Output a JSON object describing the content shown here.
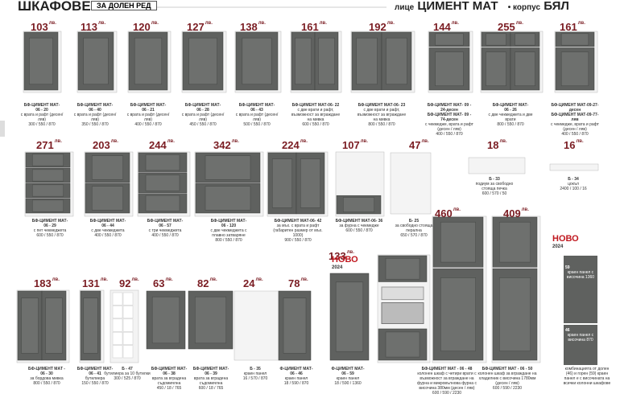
{
  "header": {
    "title": "ШКАФОВЕ",
    "tab": "ЗА ДОЛЕН РЕД",
    "front_label": "лице",
    "front": "ЦИМЕНТ МАТ",
    "body_label": "корпус",
    "body": "БЯЛ"
  },
  "currency": "лв.",
  "products": [
    {
      "price": 103,
      "code": [
        "БФ-ЦИМЕНТ МАТ-",
        "06 - 20"
      ],
      "desc": "с врата и рафт (десен/ ляв)",
      "dims": "300 / 550 / 870"
    },
    {
      "price": 113,
      "code": [
        "БФ-ЦИМЕНТ МАТ-",
        "06 - 40"
      ],
      "desc": "с врата и рафт (десен/ ляв)",
      "dims": "350 / 550 / 870"
    },
    {
      "price": 120,
      "code": [
        "БФ-ЦИМЕНТ МАТ-",
        "06 - 21"
      ],
      "desc": "с врата и рафт (десен/ ляв)",
      "dims": "400 / 550 / 870"
    },
    {
      "price": 127,
      "code": [
        "БФ-ЦИМЕНТ МАТ-",
        "06 - 28"
      ],
      "desc": "с врата и рафт (десен/ ляв)",
      "dims": "450 / 550 / 870"
    },
    {
      "price": 138,
      "code": [
        "БФ-ЦИМЕНТ МАТ-",
        "06 - 43"
      ],
      "desc": "с врата и рафт (десен/ ляв)",
      "dims": "500 / 550 / 870"
    },
    {
      "price": 161,
      "code": [
        "БФ-ЦИМЕНТ МАТ-06- 22"
      ],
      "desc": "с две врати и рафт, възможност за вграждане на мивка",
      "dims": "600 / 550 / 870"
    },
    {
      "price": 192,
      "code": [
        "БФ-ЦИМЕНТ МАТ-06- 23"
      ],
      "desc": "с две врати и рафт, възможност за вграждане на мивка",
      "dims": "800 / 550 / 870"
    },
    {
      "price": 144,
      "code": [
        "БФ-ЦИМЕНТ МАТ- 09 - 24-десен",
        "БФ-ЦИМЕНТ МАТ- 09 - 74-десен"
      ],
      "desc": "с чекмедже, врата и рафт (десен / ляв)",
      "dims": "400 / 550 / 870"
    },
    {
      "price": 255,
      "code": [
        "БФ-ЦИМЕНТ МАТ-",
        "06 - 26"
      ],
      "desc": "с две чекмеджета и две врати",
      "dims": "800 / 550 / 870"
    },
    {
      "price": 161,
      "code": [
        "БФ-ЦИМЕНТ МАТ-09-27-десен",
        "БФ-ЦИМЕНТ МАТ-09-77-ляв"
      ],
      "desc": "с чекмедже, врата и рафт (десен / ляв)",
      "dims": "400 / 550 / 870"
    },
    {
      "price": 271,
      "code": [
        "БФ-ЦИМЕНТ МАТ-",
        "06 - 29"
      ],
      "desc": "с пет чекмеджета",
      "dims": "600 / 550 / 870"
    },
    {
      "price": 203,
      "code": [
        "БФ-ЦИМЕНТ МАТ-",
        "06 - 44"
      ],
      "desc": "с две чекмеджета",
      "dims": "400 / 550 / 870"
    },
    {
      "price": 244,
      "code": [
        "БФ-ЦИМЕНТ МАТ-",
        "06 - 57"
      ],
      "desc": "с три чекмеджета",
      "dims": "400 / 550 / 870"
    },
    {
      "price": 342,
      "code": [
        "БФ-ЦИМЕНТ МАТ-",
        "06 - 120"
      ],
      "desc": "с две чекмеджета с плавно затваряне",
      "dims": "800 / 550 / 870"
    },
    {
      "price": 224,
      "code": [
        "БФ-ЦИМЕНТ МАТ-06- 42"
      ],
      "desc": "за мъх. с врата и рафт (габаритен размер от мъх. 1000)",
      "dims": "900 / 550 / 870"
    },
    {
      "price": 107,
      "code": [
        "БФ-ЦИМЕНТ МАТ-06- 36"
      ],
      "desc": "за фурна с чекмедже",
      "dims": "600 / 550 / 870"
    },
    {
      "price": 47,
      "code": [
        "Б- 25"
      ],
      "desc": "за свободно стояща перална",
      "dims": "650 / 570 / 870"
    },
    {
      "price": 18,
      "code": [
        "Б - 33"
      ],
      "desc": "подиум за свободно стояща печка",
      "dims": "600 / 570 / 50"
    },
    {
      "price": 16,
      "code": [
        "Б - 34"
      ],
      "desc": "цокъл",
      "dims": "2400 / 100 / 16"
    },
    {
      "price": 183,
      "code": [
        "БФ-ЦИМЕНТ МАТ -",
        "06 - 30"
      ],
      "desc": "за бордова мивка",
      "dims": "800 / 550 / 870"
    },
    {
      "price": 131,
      "code": [
        "БФ-ЦИМЕНТ МАТ-",
        "06 - 41"
      ],
      "desc": "бутилиера",
      "dims": "150 / 550 / 870"
    },
    {
      "price": 92,
      "code": [
        "Б - 47"
      ],
      "desc": "бутилиера за 10 бутилки",
      "dims": "300 / 525 / 870"
    },
    {
      "price": 63,
      "code": [
        "БФ-ЦИМЕНТ МАТ-",
        "06 - 38"
      ],
      "desc": "врата за вградена съдомиялна",
      "dims": "450 / 18 / 765"
    },
    {
      "price": 82,
      "code": [
        "БФ-ЦИМЕНТ МАТ-",
        "06 - 39"
      ],
      "desc": "врата за вградена съдомиялна",
      "dims": "600 / 18 / 765"
    },
    {
      "price": 24,
      "code": [
        "Б - 35"
      ],
      "desc": "краен панел",
      "dims": "16 / 570 / 870"
    },
    {
      "price": 78,
      "code": [
        "Ф-ЦИМЕНТ МАТ-",
        "06 - 46"
      ],
      "desc": "краен панел",
      "dims": "18 / 590 / 870"
    },
    {
      "price": 133,
      "code": [
        "Ф-ЦИМЕНТ МАТ-",
        "06 - 59"
      ],
      "desc": "краен панел",
      "dims": "18 / 590 / 1360"
    },
    {
      "price": 460,
      "code": [
        "БФ-ЦИМЕНТ МАТ - 06 - 48"
      ],
      "desc": "колонен шкаф с четири врати с възможност за вграждане на фурна и микровълнова фурна с височина 380мм (десен / ляв)",
      "dims": "600 / 590 / 2230"
    },
    {
      "price": 409,
      "code": [
        "БФ-ЦИМЕНТ МАТ - 06 - 50"
      ],
      "desc": "колонен шкаф за вграждане на хладилник с височина 1780мм (десен / ляв)",
      "dims": "600 / 590 / 2230"
    }
  ],
  "badges": [
    {
      "text": "НОВО",
      "year": "2024"
    },
    {
      "text": "НОВО",
      "year": "2024"
    }
  ],
  "side_panels": [
    {
      "number": "59",
      "text": "краен панел с височина 1360"
    },
    {
      "number": "46",
      "text": "краен панел с височина 870"
    }
  ],
  "side_note": "комбинацията от долен (46) и горен (59) краен панел е с височината на всички колонни шкафове"
}
